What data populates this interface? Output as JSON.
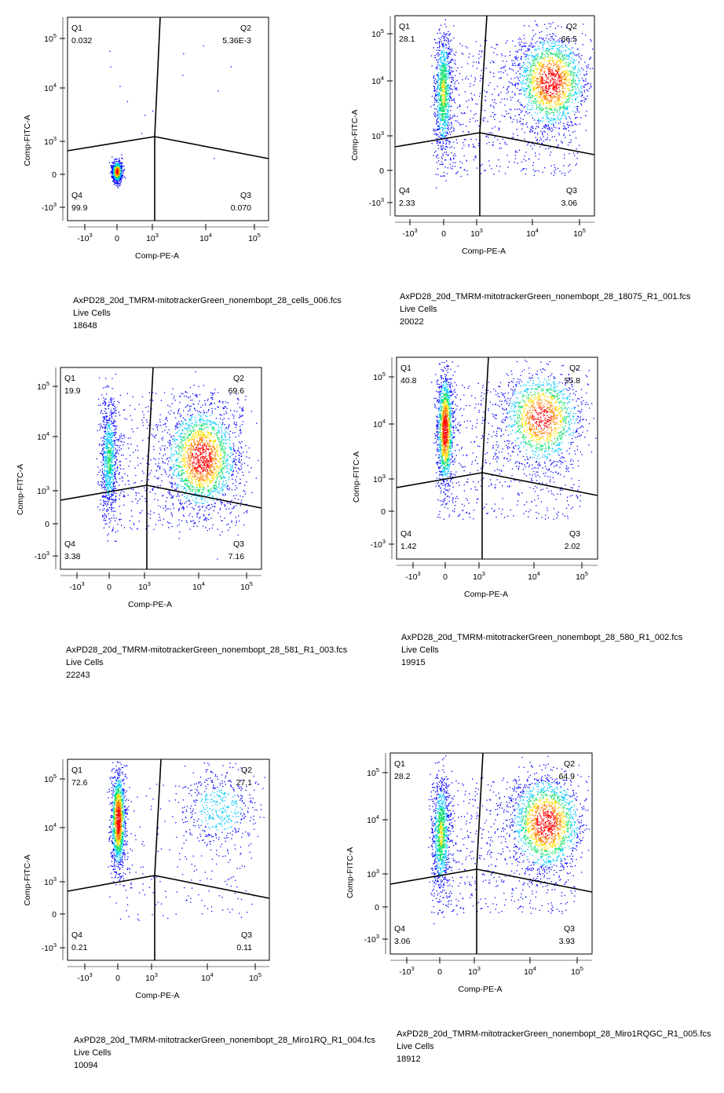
{
  "chart_data": [
    {
      "type": "scatter",
      "plot_kind": "flow cytometry pseudocolor dot plot with quadrant gate",
      "xlabel": "Comp-PE-A",
      "ylabel": "Comp-FITC-A",
      "scale": "biexponential",
      "x_ticks": [
        {
          "base": "-10",
          "exp": "3"
        },
        {
          "base": "0",
          "exp": ""
        },
        {
          "base": "10",
          "exp": "3"
        },
        {
          "base": "10",
          "exp": "4"
        },
        {
          "base": "10",
          "exp": "5"
        }
      ],
      "y_ticks": [
        {
          "base": "10",
          "exp": "5"
        },
        {
          "base": "10",
          "exp": "4"
        },
        {
          "base": "10",
          "exp": "3"
        },
        {
          "base": "0",
          "exp": ""
        },
        {
          "base": "-10",
          "exp": "3"
        }
      ],
      "quadrants": [
        {
          "name": "Q1",
          "value": "0.032"
        },
        {
          "name": "Q2",
          "value": "5.36E-3"
        },
        {
          "name": "Q3",
          "value": "0.070"
        },
        {
          "name": "Q4",
          "value": "99.9"
        }
      ],
      "caption": {
        "file": "AxPD28_20d_TMRM-mitotrackerGreen_nonembopt_28_cells_006.fcs",
        "population": "Live Cells",
        "count": "18648"
      }
    },
    {
      "type": "scatter",
      "plot_kind": "flow cytometry pseudocolor dot plot with quadrant gate",
      "xlabel": "Comp-PE-A",
      "ylabel": "Comp-FITC-A",
      "scale": "biexponential",
      "x_ticks": [
        {
          "base": "-10",
          "exp": "3"
        },
        {
          "base": "0",
          "exp": ""
        },
        {
          "base": "10",
          "exp": "3"
        },
        {
          "base": "10",
          "exp": "4"
        },
        {
          "base": "10",
          "exp": "5"
        }
      ],
      "y_ticks": [
        {
          "base": "10",
          "exp": "5"
        },
        {
          "base": "10",
          "exp": "4"
        },
        {
          "base": "10",
          "exp": "3"
        },
        {
          "base": "0",
          "exp": ""
        },
        {
          "base": "-10",
          "exp": "3"
        }
      ],
      "quadrants": [
        {
          "name": "Q1",
          "value": "28.1"
        },
        {
          "name": "Q2",
          "value": "66.5"
        },
        {
          "name": "Q3",
          "value": "3.06"
        },
        {
          "name": "Q4",
          "value": "2.33"
        }
      ],
      "caption": {
        "file": "AxPD28_20d_TMRM-mitotrackerGreen_nonembopt_28_18075_R1_001.fcs",
        "population": "Live Cells",
        "count": "20022"
      }
    },
    {
      "type": "scatter",
      "plot_kind": "flow cytometry pseudocolor dot plot with quadrant gate",
      "xlabel": "Comp-PE-A",
      "ylabel": "Comp-FITC-A",
      "scale": "biexponential",
      "x_ticks": [
        {
          "base": "-10",
          "exp": "3"
        },
        {
          "base": "0",
          "exp": ""
        },
        {
          "base": "10",
          "exp": "3"
        },
        {
          "base": "10",
          "exp": "4"
        },
        {
          "base": "10",
          "exp": "5"
        }
      ],
      "y_ticks": [
        {
          "base": "10",
          "exp": "5"
        },
        {
          "base": "10",
          "exp": "4"
        },
        {
          "base": "10",
          "exp": "3"
        },
        {
          "base": "0",
          "exp": ""
        },
        {
          "base": "-10",
          "exp": "3"
        }
      ],
      "quadrants": [
        {
          "name": "Q1",
          "value": "19.9"
        },
        {
          "name": "Q2",
          "value": "69.6"
        },
        {
          "name": "Q3",
          "value": "7.16"
        },
        {
          "name": "Q4",
          "value": "3.38"
        }
      ],
      "caption": {
        "file": "AxPD28_20d_TMRM-mitotrackerGreen_nonembopt_28_581_R1_003.fcs",
        "population": "Live Cells",
        "count": "22243"
      }
    },
    {
      "type": "scatter",
      "plot_kind": "flow cytometry pseudocolor dot plot with quadrant gate",
      "xlabel": "Comp-PE-A",
      "ylabel": "Comp-FITC-A",
      "scale": "biexponential",
      "x_ticks": [
        {
          "base": "-10",
          "exp": "3"
        },
        {
          "base": "0",
          "exp": ""
        },
        {
          "base": "10",
          "exp": "3"
        },
        {
          "base": "10",
          "exp": "4"
        },
        {
          "base": "10",
          "exp": "5"
        }
      ],
      "y_ticks": [
        {
          "base": "10",
          "exp": "5"
        },
        {
          "base": "10",
          "exp": "4"
        },
        {
          "base": "10",
          "exp": "3"
        },
        {
          "base": "0",
          "exp": ""
        },
        {
          "base": "-10",
          "exp": "3"
        }
      ],
      "quadrants": [
        {
          "name": "Q1",
          "value": "40.8"
        },
        {
          "name": "Q2",
          "value": "55.8"
        },
        {
          "name": "Q3",
          "value": "2.02"
        },
        {
          "name": "Q4",
          "value": "1.42"
        }
      ],
      "caption": {
        "file": "AxPD28_20d_TMRM-mitotrackerGreen_nonembopt_28_580_R1_002.fcs",
        "population": "Live Cells",
        "count": "19915"
      }
    },
    {
      "type": "scatter",
      "plot_kind": "flow cytometry pseudocolor dot plot with quadrant gate",
      "xlabel": "Comp-PE-A",
      "ylabel": "Comp-FITC-A",
      "scale": "biexponential",
      "x_ticks": [
        {
          "base": "-10",
          "exp": "3"
        },
        {
          "base": "0",
          "exp": ""
        },
        {
          "base": "10",
          "exp": "3"
        },
        {
          "base": "10",
          "exp": "4"
        },
        {
          "base": "10",
          "exp": "5"
        }
      ],
      "y_ticks": [
        {
          "base": "10",
          "exp": "5"
        },
        {
          "base": "10",
          "exp": "4"
        },
        {
          "base": "10",
          "exp": "3"
        },
        {
          "base": "0",
          "exp": ""
        },
        {
          "base": "-10",
          "exp": "3"
        }
      ],
      "quadrants": [
        {
          "name": "Q1",
          "value": "72.6"
        },
        {
          "name": "Q2",
          "value": "27.1"
        },
        {
          "name": "Q3",
          "value": "0.11"
        },
        {
          "name": "Q4",
          "value": "0.21"
        }
      ],
      "caption": {
        "file": "AxPD28_20d_TMRM-mitotrackerGreen_nonembopt_28_Miro1RQ_R1_004.fcs",
        "population": "Live Cells",
        "count": "10094"
      }
    },
    {
      "type": "scatter",
      "plot_kind": "flow cytometry pseudocolor dot plot with quadrant gate",
      "xlabel": "Comp-PE-A",
      "ylabel": "Comp-FITC-A",
      "scale": "biexponential",
      "x_ticks": [
        {
          "base": "-10",
          "exp": "3"
        },
        {
          "base": "0",
          "exp": ""
        },
        {
          "base": "10",
          "exp": "3"
        },
        {
          "base": "10",
          "exp": "4"
        },
        {
          "base": "10",
          "exp": "5"
        }
      ],
      "y_ticks": [
        {
          "base": "10",
          "exp": "5"
        },
        {
          "base": "10",
          "exp": "4"
        },
        {
          "base": "10",
          "exp": "3"
        },
        {
          "base": "0",
          "exp": ""
        },
        {
          "base": "-10",
          "exp": "3"
        }
      ],
      "quadrants": [
        {
          "name": "Q1",
          "value": "28.2"
        },
        {
          "name": "Q2",
          "value": "64.9"
        },
        {
          "name": "Q3",
          "value": "3.93"
        },
        {
          "name": "Q4",
          "value": "3.06"
        }
      ],
      "caption": {
        "file": "AxPD28_20d_TMRM-mitotrackerGreen_nonembopt_28_Miro1RQGC_R1_005.fcs",
        "population": "Live Cells",
        "count": "18912"
      }
    }
  ],
  "colors": {
    "density_scale": [
      "#0000ff",
      "#00c8ff",
      "#00e060",
      "#ffe000",
      "#ff8000",
      "#ff0000"
    ],
    "gate": "#000000"
  }
}
